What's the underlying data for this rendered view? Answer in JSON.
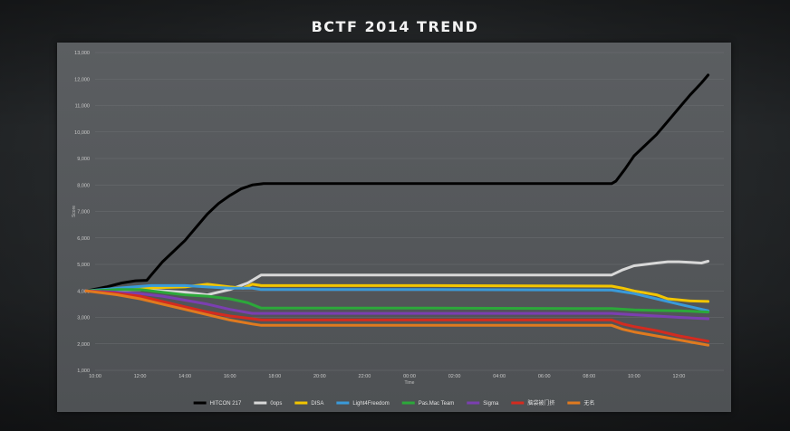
{
  "title": "BCTF 2014 TREND",
  "chart_data": {
    "type": "line",
    "title": "BCTF 2014 TREND",
    "xlabel": "Time",
    "ylabel": "Score",
    "ylim": [
      1000,
      13000
    ],
    "xlim": [
      10,
      38
    ],
    "yticks": [
      1000,
      2000,
      3000,
      4000,
      5000,
      6000,
      7000,
      8000,
      9000,
      10000,
      11000,
      12000,
      13000
    ],
    "ytick_labels": [
      "1,000",
      "2,000",
      "3,000",
      "4,000",
      "5,000",
      "6,000",
      "7,000",
      "8,000",
      "9,000",
      "10,000",
      "11,000",
      "12,000",
      "13,000"
    ],
    "xticks": [
      10,
      12,
      14,
      16,
      18,
      20,
      22,
      24,
      26,
      28,
      30,
      32,
      34,
      36
    ],
    "xtick_labels": [
      "10:00",
      "12:00",
      "14:00",
      "16:00",
      "18:00",
      "20:00",
      "22:00",
      "00:00",
      "02:00",
      "04:00",
      "06:00",
      "08:00",
      "10:00",
      "12:00"
    ],
    "grid": true,
    "legend_position": "bottom",
    "series": [
      {
        "name": "HITCON 217",
        "color": "#000000",
        "points": [
          [
            9.6,
            4000
          ],
          [
            10.5,
            4150
          ],
          [
            11.2,
            4300
          ],
          [
            11.8,
            4380
          ],
          [
            12.3,
            4400
          ],
          [
            12.6,
            4700
          ],
          [
            13.0,
            5100
          ],
          [
            13.5,
            5500
          ],
          [
            14.0,
            5900
          ],
          [
            14.5,
            6400
          ],
          [
            15.0,
            6900
          ],
          [
            15.5,
            7300
          ],
          [
            16.0,
            7600
          ],
          [
            16.5,
            7850
          ],
          [
            17.0,
            8000
          ],
          [
            17.5,
            8050
          ],
          [
            18,
            8050
          ],
          [
            25,
            8050
          ],
          [
            33.0,
            8050
          ],
          [
            33.2,
            8150
          ],
          [
            33.6,
            8600
          ],
          [
            34.0,
            9100
          ],
          [
            34.5,
            9500
          ],
          [
            35.0,
            9900
          ],
          [
            35.5,
            10400
          ],
          [
            36.0,
            10900
          ],
          [
            36.5,
            11400
          ],
          [
            37.0,
            11850
          ],
          [
            37.3,
            12150
          ]
        ]
      },
      {
        "name": "0ops",
        "color": "#d8d8d8",
        "points": [
          [
            9.6,
            4000
          ],
          [
            12,
            4050
          ],
          [
            14,
            3950
          ],
          [
            15,
            3850
          ],
          [
            16,
            4050
          ],
          [
            16.8,
            4300
          ],
          [
            17.4,
            4600
          ],
          [
            25,
            4600
          ],
          [
            33.0,
            4600
          ],
          [
            33.5,
            4800
          ],
          [
            34,
            4950
          ],
          [
            34.5,
            5000
          ],
          [
            35,
            5050
          ],
          [
            35.5,
            5100
          ],
          [
            36,
            5100
          ],
          [
            36.5,
            5080
          ],
          [
            37,
            5050
          ],
          [
            37.3,
            5120
          ]
        ]
      },
      {
        "name": "DISA",
        "color": "#f2c500",
        "points": [
          [
            9.6,
            4000
          ],
          [
            12,
            4100
          ],
          [
            14,
            4150
          ],
          [
            15,
            4250
          ],
          [
            16,
            4150
          ],
          [
            16.6,
            4100
          ],
          [
            17,
            4250
          ],
          [
            17.4,
            4200
          ],
          [
            25,
            4200
          ],
          [
            33.0,
            4180
          ],
          [
            33.5,
            4100
          ],
          [
            34,
            4000
          ],
          [
            35,
            3850
          ],
          [
            35.5,
            3700
          ],
          [
            36.5,
            3620
          ],
          [
            37.3,
            3600
          ]
        ]
      },
      {
        "name": "Light4Freedom",
        "color": "#3a9ad9",
        "points": [
          [
            9.6,
            4000
          ],
          [
            11,
            4100
          ],
          [
            12.5,
            4200
          ],
          [
            14,
            4200
          ],
          [
            15,
            4150
          ],
          [
            16,
            4100
          ],
          [
            17,
            4100
          ],
          [
            17.4,
            4050
          ],
          [
            25,
            4050
          ],
          [
            33.0,
            4030
          ],
          [
            34,
            3900
          ],
          [
            35,
            3700
          ],
          [
            36,
            3500
          ],
          [
            37.3,
            3250
          ]
        ]
      },
      {
        "name": "Pas.Mac Team",
        "color": "#2ca83a",
        "points": [
          [
            9.6,
            4000
          ],
          [
            11,
            4050
          ],
          [
            12,
            4050
          ],
          [
            13,
            3950
          ],
          [
            14,
            3850
          ],
          [
            15,
            3800
          ],
          [
            16,
            3700
          ],
          [
            16.8,
            3550
          ],
          [
            17.4,
            3350
          ],
          [
            25,
            3350
          ],
          [
            33.0,
            3330
          ],
          [
            34,
            3280
          ],
          [
            35,
            3260
          ],
          [
            36,
            3250
          ],
          [
            37.3,
            3200
          ]
        ]
      },
      {
        "name": "Sigma",
        "color": "#7b3fb0",
        "points": [
          [
            9.6,
            4000
          ],
          [
            11,
            3950
          ],
          [
            12,
            3900
          ],
          [
            13,
            3800
          ],
          [
            14,
            3650
          ],
          [
            15,
            3500
          ],
          [
            16,
            3300
          ],
          [
            17,
            3150
          ],
          [
            17.4,
            3150
          ],
          [
            25,
            3150
          ],
          [
            33.0,
            3150
          ],
          [
            34,
            3100
          ],
          [
            35,
            3050
          ],
          [
            36,
            3000
          ],
          [
            37.3,
            2950
          ]
        ]
      },
      {
        "name": "脑袋被门挤",
        "color": "#d42b1f",
        "points": [
          [
            9.6,
            4000
          ],
          [
            11,
            3900
          ],
          [
            12,
            3800
          ],
          [
            13,
            3600
          ],
          [
            14,
            3400
          ],
          [
            15,
            3200
          ],
          [
            16,
            3050
          ],
          [
            17,
            2950
          ],
          [
            17.4,
            2900
          ],
          [
            25,
            2900
          ],
          [
            33.0,
            2900
          ],
          [
            33.5,
            2750
          ],
          [
            34,
            2650
          ],
          [
            35,
            2500
          ],
          [
            36,
            2300
          ],
          [
            37.3,
            2100
          ]
        ]
      },
      {
        "name": "无名",
        "color": "#e07a1f",
        "points": [
          [
            9.6,
            4000
          ],
          [
            11,
            3850
          ],
          [
            12,
            3700
          ],
          [
            13,
            3500
          ],
          [
            14,
            3300
          ],
          [
            15,
            3100
          ],
          [
            16,
            2900
          ],
          [
            17,
            2750
          ],
          [
            17.4,
            2700
          ],
          [
            25,
            2700
          ],
          [
            33.0,
            2700
          ],
          [
            33.5,
            2550
          ],
          [
            34,
            2450
          ],
          [
            35,
            2300
          ],
          [
            36,
            2150
          ],
          [
            37.3,
            1950
          ]
        ]
      }
    ]
  }
}
